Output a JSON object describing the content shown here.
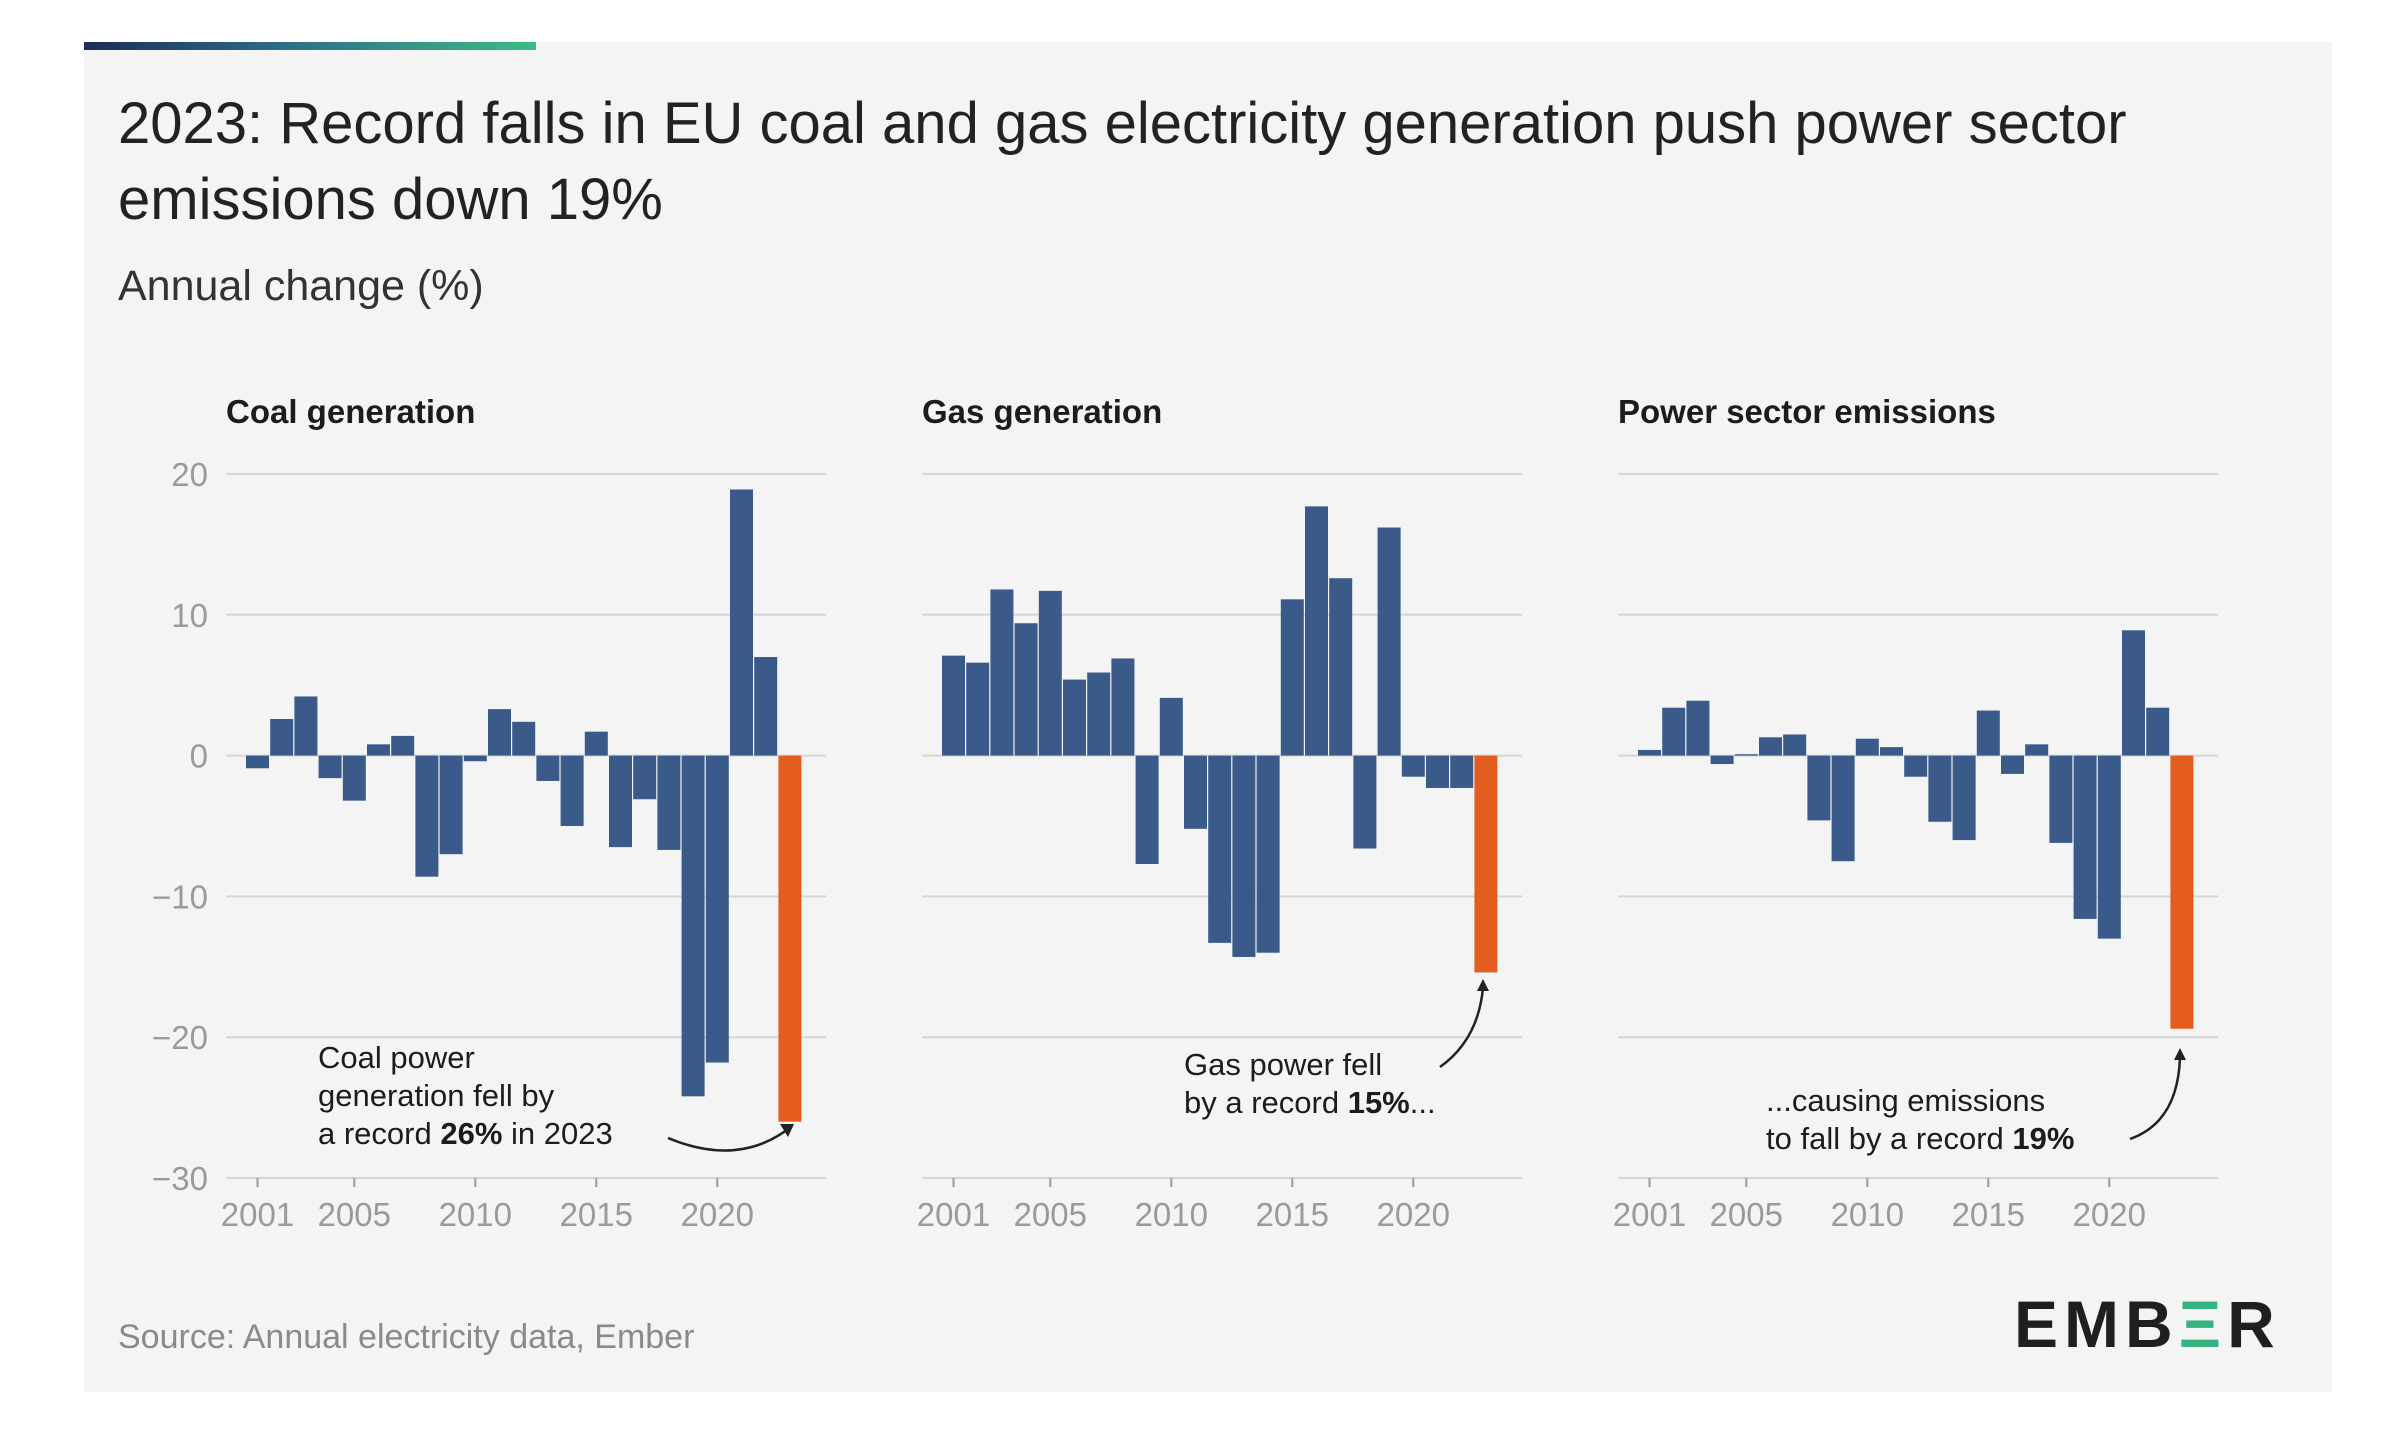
{
  "header": {
    "title": "2023: Record falls in EU coal and gas electricity generation push power sector emissions down 19%",
    "subtitle": "Annual change (%)"
  },
  "footer": {
    "source": "Source: Annual electricity data, Ember",
    "logo_prefix": "EMB",
    "logo_mark": "Ξ",
    "logo_suffix": "R"
  },
  "colors": {
    "bar": "#3a5a8a",
    "highlight": "#e45d1f",
    "grid": "#d6d6d6",
    "accent_start": "#1d2d5c",
    "accent_end": "#3dbb86"
  },
  "chart_data": [
    {
      "type": "bar",
      "title": "Coal generation",
      "ylim": [
        -30,
        20
      ],
      "yticks": [
        20,
        10,
        0,
        -10,
        -20,
        -30
      ],
      "ytick_labels": [
        "20",
        "10",
        "0",
        "−10",
        "−20",
        "−30"
      ],
      "xticks": [
        2001,
        2005,
        2010,
        2015,
        2020
      ],
      "x": [
        2001,
        2002,
        2003,
        2004,
        2005,
        2006,
        2007,
        2008,
        2009,
        2010,
        2011,
        2012,
        2013,
        2014,
        2015,
        2016,
        2017,
        2018,
        2019,
        2020,
        2021,
        2022,
        2023
      ],
      "values": [
        -0.9,
        2.6,
        4.2,
        -1.6,
        -3.2,
        0.8,
        1.4,
        -8.6,
        -7.0,
        -0.4,
        3.3,
        2.4,
        -1.8,
        -5.0,
        1.7,
        -6.5,
        -3.1,
        -6.7,
        -24.2,
        -21.8,
        18.9,
        7.0,
        -26.0
      ],
      "highlight_year": 2023,
      "annotation": {
        "line1": "Coal power",
        "line2": "generation fell by",
        "prefix": "a record ",
        "bold": "26%",
        "suffix": " in 2023"
      }
    },
    {
      "type": "bar",
      "title": "Gas generation",
      "ylim": [
        -30,
        20
      ],
      "yticks": [
        20,
        10,
        0,
        -10,
        -20,
        -30
      ],
      "xticks": [
        2001,
        2005,
        2010,
        2015,
        2020
      ],
      "x": [
        2001,
        2002,
        2003,
        2004,
        2005,
        2006,
        2007,
        2008,
        2009,
        2010,
        2011,
        2012,
        2013,
        2014,
        2015,
        2016,
        2017,
        2018,
        2019,
        2020,
        2021,
        2022,
        2023
      ],
      "values": [
        7.1,
        6.6,
        11.8,
        9.4,
        11.7,
        5.4,
        5.9,
        6.9,
        -7.7,
        4.1,
        -5.2,
        -13.3,
        -14.3,
        -14.0,
        11.1,
        17.7,
        12.6,
        -6.6,
        16.2,
        -1.5,
        -2.3,
        -2.3,
        -15.4
      ],
      "highlight_year": 2023,
      "annotation": {
        "line1": "Gas power fell",
        "prefix": "by a record ",
        "bold": "15%",
        "suffix": "..."
      }
    },
    {
      "type": "bar",
      "title": "Power sector emissions",
      "ylim": [
        -30,
        20
      ],
      "yticks": [
        20,
        10,
        0,
        -10,
        -20,
        -30
      ],
      "xticks": [
        2001,
        2005,
        2010,
        2015,
        2020
      ],
      "x": [
        2001,
        2002,
        2003,
        2004,
        2005,
        2006,
        2007,
        2008,
        2009,
        2010,
        2011,
        2012,
        2013,
        2014,
        2015,
        2016,
        2017,
        2018,
        2019,
        2020,
        2021,
        2022,
        2023
      ],
      "values": [
        0.4,
        3.4,
        3.9,
        -0.6,
        0.1,
        1.3,
        1.5,
        -4.6,
        -7.5,
        1.2,
        0.6,
        -1.5,
        -4.7,
        -6.0,
        3.2,
        -1.3,
        0.8,
        -6.2,
        -11.6,
        -13.0,
        8.9,
        3.4,
        -19.4
      ],
      "highlight_year": 2023,
      "annotation": {
        "line1": "...causing emissions",
        "prefix": "to fall by a record ",
        "bold": "19%",
        "suffix": ""
      }
    }
  ]
}
